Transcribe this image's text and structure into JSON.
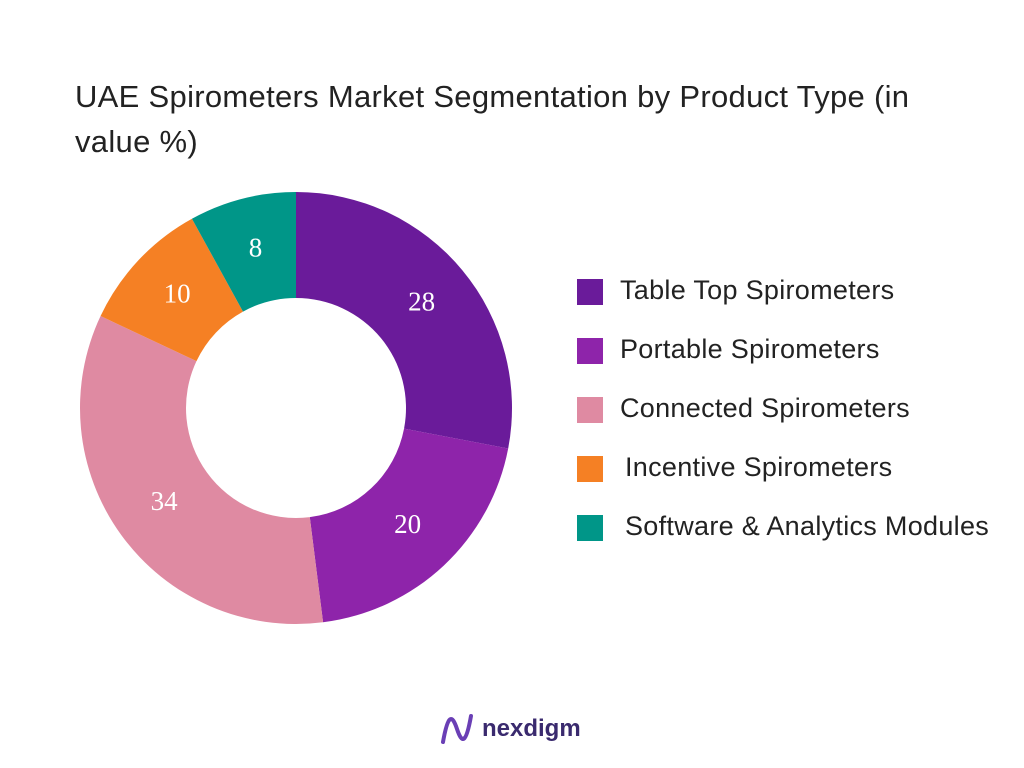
{
  "chart_data": {
    "type": "donut",
    "title": "UAE Spirometers Market Segmentation by Product Type (in value %)",
    "categories": [
      "Table Top Spirometers",
      "Portable Spirometers",
      "Connected Spirometers",
      "Incentive Spirometers",
      "Software & Analytics Modules"
    ],
    "values": [
      28,
      20,
      34,
      10,
      8
    ],
    "colors": [
      "#6a1b9a",
      "#8e24aa",
      "#df8aa2",
      "#f58024",
      "#009688"
    ],
    "legend": "right"
  },
  "footer": {
    "logo": "nexdigm"
  }
}
